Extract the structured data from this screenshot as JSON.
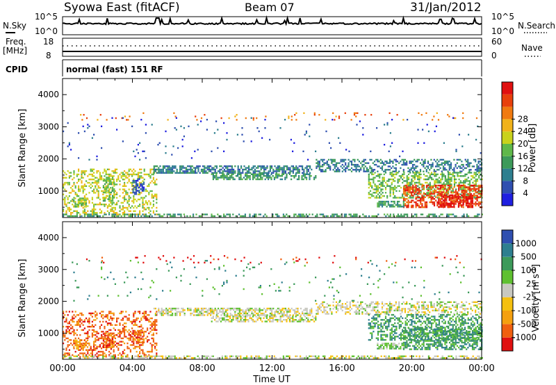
{
  "header": {
    "station": "Syowa East (fitACF)",
    "beam": "Beam 07",
    "date": "31/Jan/2012"
  },
  "top_panels": {
    "nsky_label": "N.Sky",
    "nsearch_label": "N.Search",
    "nsky_ticks": [
      "10^5",
      "10^0"
    ],
    "nsearch_ticks": [
      "10^5",
      "10^0"
    ],
    "freq_label": "Freq.",
    "freq_unit": "[MHz]",
    "freq_ticks": [
      "18",
      "8"
    ],
    "nave_label": "Nave",
    "nave_ticks": [
      "60",
      "0"
    ],
    "cpid_label": "CPID",
    "cpid_text": "normal (fast) 151 RF"
  },
  "x_axis": {
    "label": "Time UT",
    "ticks": [
      "00:00",
      "04:00",
      "08:00",
      "12:00",
      "16:00",
      "20:00",
      "00:00"
    ]
  },
  "chart_data": [
    {
      "type": "heatmap",
      "quantity": "Power",
      "ylabel": "Slant Range [km]",
      "yticks": [
        1000,
        2000,
        3000,
        4000
      ],
      "ylim": [
        180,
        4500
      ],
      "xlim_hours": [
        0,
        24
      ],
      "colorbar": {
        "label": "Power [dB]",
        "ticks": [
          "4",
          "8",
          "12",
          "16",
          "20",
          "24",
          "28"
        ],
        "colors": [
          "#1f1fe0",
          "#2f4fb0",
          "#2e7f8f",
          "#3c9a5a",
          "#5fb84a",
          "#c9d21c",
          "#f1b21a",
          "#f07a10",
          "#e8400c",
          "#e01010"
        ]
      },
      "regions": [
        {
          "t0": 0.0,
          "t1": 5.4,
          "r0": 250,
          "r1": 1700,
          "level": 5,
          "density": 0.35
        },
        {
          "t0": 0.6,
          "t1": 1.4,
          "r0": 500,
          "r1": 800,
          "level": 4,
          "density": 0.6
        },
        {
          "t0": 2.3,
          "t1": 3.0,
          "r0": 700,
          "r1": 1450,
          "level": 4,
          "density": 0.6
        },
        {
          "t0": 4.0,
          "t1": 4.7,
          "r0": 900,
          "r1": 1400,
          "level": 1,
          "density": 0.6
        },
        {
          "t0": 5.2,
          "t1": 14.3,
          "r0": 1550,
          "r1": 1800,
          "level": 2,
          "density": 0.65
        },
        {
          "t0": 8.5,
          "t1": 14.5,
          "r0": 1350,
          "r1": 1550,
          "level": 3,
          "density": 0.6
        },
        {
          "t0": 14.5,
          "t1": 24.0,
          "r0": 1600,
          "r1": 2000,
          "level": 2,
          "density": 0.45
        },
        {
          "t0": 17.5,
          "t1": 24.0,
          "r0": 800,
          "r1": 1600,
          "level": 4,
          "density": 0.45
        },
        {
          "t0": 19.5,
          "t1": 24.0,
          "r0": 500,
          "r1": 1200,
          "level": 8,
          "density": 0.55
        },
        {
          "t0": 21.5,
          "t1": 23.5,
          "r0": 500,
          "r1": 900,
          "level": 9,
          "density": 0.6
        },
        {
          "t0": 18.0,
          "t1": 19.5,
          "r0": 500,
          "r1": 700,
          "level": 3,
          "density": 0.7
        },
        {
          "t0": 0.0,
          "t1": 24.0,
          "r0": 200,
          "r1": 300,
          "level": 3,
          "density": 0.5
        },
        {
          "t0": 1.0,
          "t1": 24.0,
          "r0": 3200,
          "r1": 3450,
          "level": 7,
          "density": 0.05
        },
        {
          "t0": 0.0,
          "t1": 24.0,
          "r0": 2000,
          "r1": 3300,
          "level": 1,
          "density": 0.02
        }
      ]
    },
    {
      "type": "heatmap",
      "quantity": "Velocity",
      "ylabel": "Slant Range [km]",
      "yticks": [
        1000,
        2000,
        3000,
        4000
      ],
      "ylim": [
        180,
        4500
      ],
      "xlim_hours": [
        0,
        24
      ],
      "colorbar": {
        "label": "Velocity [m s-1]",
        "ticks": [
          "-1000",
          "-500",
          "-100",
          "-25",
          "25",
          "100",
          "500",
          "1000"
        ],
        "colors": [
          "#e01010",
          "#f06010",
          "#f5a010",
          "#f5c010",
          "#c8c8c0",
          "#5fc030",
          "#3c9a5a",
          "#2e7f8f",
          "#2f4fb0"
        ]
      },
      "regions": [
        {
          "t0": 0.0,
          "t1": 5.4,
          "r0": 250,
          "r1": 1700,
          "level": 1,
          "density": 0.35
        },
        {
          "t0": 0.6,
          "t1": 1.4,
          "r0": 500,
          "r1": 800,
          "level": 2,
          "density": 0.6
        },
        {
          "t0": 2.3,
          "t1": 3.0,
          "r0": 500,
          "r1": 1000,
          "level": 1,
          "density": 0.6
        },
        {
          "t0": 4.0,
          "t1": 4.7,
          "r0": 700,
          "r1": 1100,
          "level": 1,
          "density": 0.6
        },
        {
          "t0": 5.2,
          "t1": 14.3,
          "r0": 1550,
          "r1": 1800,
          "level": 4,
          "density": 0.6
        },
        {
          "t0": 8.5,
          "t1": 14.5,
          "r0": 1350,
          "r1": 1550,
          "level": 4,
          "density": 0.6
        },
        {
          "t0": 14.5,
          "t1": 24.0,
          "r0": 1600,
          "r1": 2000,
          "level": 4,
          "density": 0.45
        },
        {
          "t0": 17.5,
          "t1": 24.0,
          "r0": 800,
          "r1": 1600,
          "level": 6,
          "density": 0.45
        },
        {
          "t0": 19.5,
          "t1": 24.0,
          "r0": 500,
          "r1": 1200,
          "level": 6,
          "density": 0.55
        },
        {
          "t0": 18.0,
          "t1": 19.5,
          "r0": 500,
          "r1": 700,
          "level": 5,
          "density": 0.7
        },
        {
          "t0": 0.0,
          "t1": 24.0,
          "r0": 200,
          "r1": 300,
          "level": 4,
          "density": 0.5
        },
        {
          "t0": 1.0,
          "t1": 24.0,
          "r0": 3200,
          "r1": 3450,
          "level": 0,
          "density": 0.05
        },
        {
          "t0": 0.0,
          "t1": 24.0,
          "r0": 2000,
          "r1": 3300,
          "level": 6,
          "density": 0.02
        }
      ]
    }
  ]
}
